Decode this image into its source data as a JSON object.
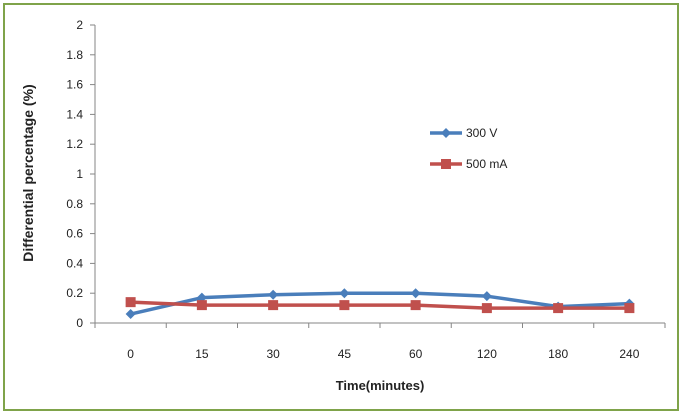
{
  "chart_data": {
    "type": "line",
    "categories": [
      "0",
      "15",
      "30",
      "45",
      "60",
      "120",
      "180",
      "240"
    ],
    "xlabel": "Time(minutes)",
    "ylabel": "Differential percentage (%)",
    "ylim": [
      0,
      2
    ],
    "yticks": [
      "0",
      "0.2",
      "0.4",
      "0.6",
      "0.8",
      "1",
      "1.2",
      "1.4",
      "1.6",
      "1.8",
      "2"
    ],
    "grid": false,
    "legend_position": "center-right",
    "series": [
      {
        "name": "300 V",
        "color": "#4a7ebb",
        "marker": "diamond",
        "values": [
          0.06,
          0.17,
          0.19,
          0.2,
          0.2,
          0.18,
          0.11,
          0.13
        ]
      },
      {
        "name": "500 mA",
        "color": "#c0504d",
        "marker": "square",
        "values": [
          0.14,
          0.12,
          0.12,
          0.12,
          0.12,
          0.1,
          0.1,
          0.1
        ]
      }
    ]
  }
}
